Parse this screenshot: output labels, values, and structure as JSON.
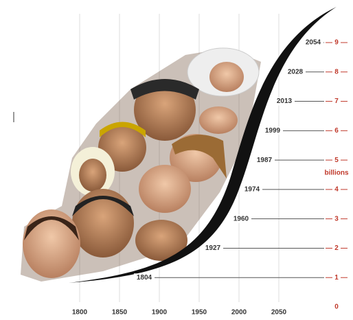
{
  "chart_data": {
    "type": "milestones",
    "x_label_ticks": [
      1800,
      1850,
      1900,
      1950,
      2000,
      2050
    ],
    "xlim": [
      1800,
      2050
    ],
    "y_label": "billions",
    "ylim": [
      0,
      9
    ],
    "yticks": [
      0,
      1,
      2,
      3,
      4,
      5,
      6,
      7,
      8,
      9
    ],
    "years": [
      1804,
      1927,
      1960,
      1974,
      1987,
      1999,
      2013,
      2028,
      2054
    ],
    "values": [
      1,
      2,
      3,
      4,
      5,
      6,
      7,
      8,
      9
    ],
    "grid": true,
    "axis_color": "#c0392b"
  }
}
